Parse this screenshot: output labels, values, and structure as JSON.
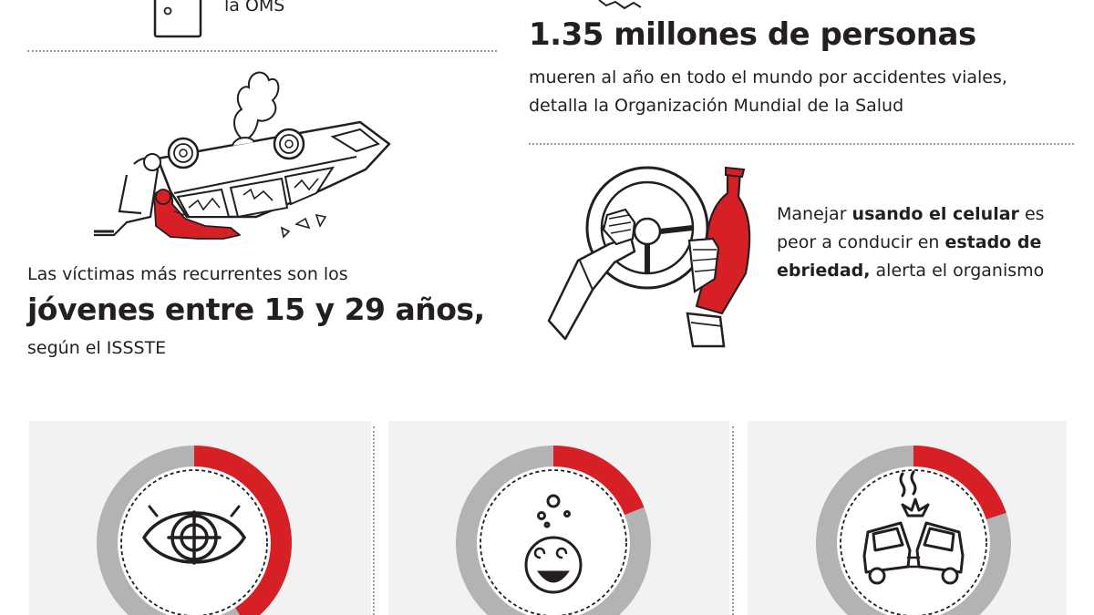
{
  "top_left": {
    "caption": "la OMS"
  },
  "deaths": {
    "headline": "1.35 millones de personas",
    "line1": "mueren al año en todo el mundo por accidentes viales,",
    "line2": "detalla la Organización Mundial de la Salud"
  },
  "victims": {
    "intro": "Las víctimas más recurrentes son los",
    "highlight": "jóvenes entre 15 y 29 años,",
    "source": "según el ISSSTE"
  },
  "phone": {
    "l1_a": "Manejar ",
    "l1_b": "usando el celular",
    "l1_c": " es",
    "l2_a": "peor a conducir en ",
    "l2_b": "estado de",
    "l3_a": "ebriedad,",
    "l3_b": " alerta el organismo"
  },
  "colors": {
    "accent": "#d71f26",
    "gray": "#b3b3b3",
    "panel": "#f2f2f2",
    "text": "#231f20"
  },
  "donuts": [
    {
      "icon": "eye-target-icon",
      "red_fraction": 0.41
    },
    {
      "icon": "dizzy-face-icon",
      "red_fraction": 0.19
    },
    {
      "icon": "car-crash-icon",
      "red_fraction": 0.2
    }
  ]
}
